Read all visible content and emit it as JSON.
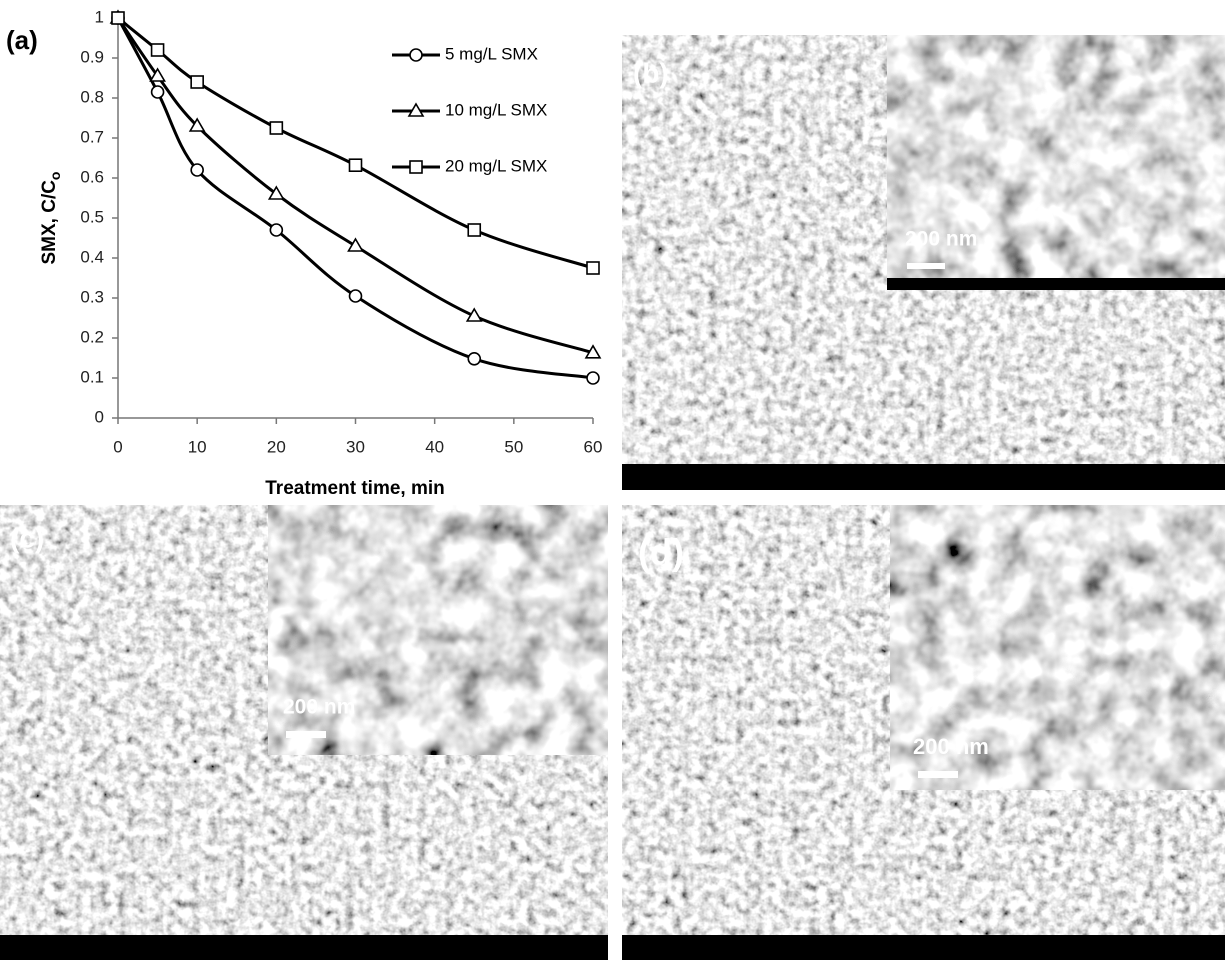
{
  "chart_data": {
    "type": "line",
    "panel_label": "(a)",
    "x_label": "Treatment time, min",
    "y_label": {
      "text": "SMX, C/C",
      "subscript": "o"
    },
    "x": [
      0,
      5,
      10,
      20,
      30,
      45,
      60
    ],
    "series": [
      {
        "name": "5 mg/L SMX",
        "color": "#000000",
        "marker": "circle",
        "values": [
          1,
          0.815,
          0.62,
          0.47,
          0.305,
          0.148,
          0.1
        ]
      },
      {
        "name": "10 mg/L SMX",
        "color": "#000000",
        "marker": "triangle",
        "values": [
          1,
          0.855,
          0.73,
          0.56,
          0.43,
          0.255,
          0.163
        ]
      },
      {
        "name": "20 mg/L SMX",
        "color": "#000000",
        "marker": "square",
        "values": [
          1,
          0.92,
          0.84,
          0.725,
          0.632,
          0.47,
          0.375
        ]
      }
    ],
    "xlim": [
      0,
      60
    ],
    "xticks": [
      0,
      10,
      20,
      30,
      40,
      50,
      60
    ],
    "ylim": [
      0,
      1
    ],
    "yticks": [
      0,
      0.1,
      0.2,
      0.3,
      0.4,
      0.5,
      0.6,
      0.7,
      0.8,
      0.9,
      1
    ],
    "grid": false,
    "legend": "upper right"
  },
  "micrographs": [
    {
      "label": "(b)",
      "inset_scale": "200 nm"
    },
    {
      "label": "(c)",
      "inset_scale": "200 nm"
    },
    {
      "label": "(d)",
      "inset_scale": "200 nm"
    }
  ]
}
